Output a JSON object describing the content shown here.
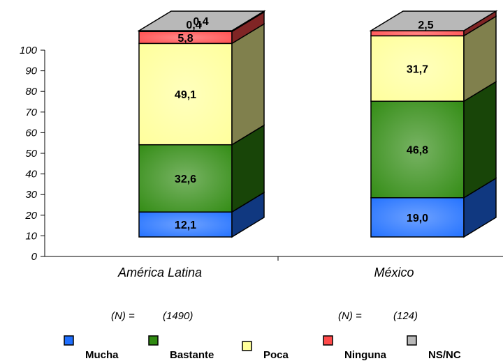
{
  "chart_data": {
    "type": "bar",
    "stacked": true,
    "three_d": true,
    "categories": [
      "América Latina",
      "México"
    ],
    "n_labels": [
      {
        "prefix": "(N) =",
        "value": "(1490)"
      },
      {
        "prefix": "(N) =",
        "value": "(124)"
      }
    ],
    "series": [
      {
        "name": "Mucha",
        "color": "#1f6fff",
        "values": [
          12.1,
          19.0
        ],
        "labels": [
          "12,1",
          "19,0"
        ]
      },
      {
        "name": "Bastante",
        "color": "#2f8a10",
        "values": [
          32.6,
          46.8
        ],
        "labels": [
          "32,6",
          "46,8"
        ]
      },
      {
        "name": "Poca",
        "color": "#ffff9a",
        "values": [
          49.1,
          31.7
        ],
        "labels": [
          "49,1",
          "31,7"
        ]
      },
      {
        "name": "Ninguna",
        "color": "#ff4a4a",
        "values": [
          5.8,
          2.5
        ],
        "labels": [
          "5,8",
          "2,5"
        ]
      },
      {
        "name": "NS/NC",
        "color": "#b8b8b8",
        "values": [
          0.4,
          0.0
        ],
        "labels": [
          "0,4",
          ""
        ]
      }
    ],
    "yticks": [
      "0",
      "10",
      "20",
      "30",
      "40",
      "50",
      "60",
      "70",
      "80",
      "90",
      "100"
    ],
    "ylim": [
      0,
      100
    ],
    "grid": false,
    "legend_position": "bottom"
  }
}
